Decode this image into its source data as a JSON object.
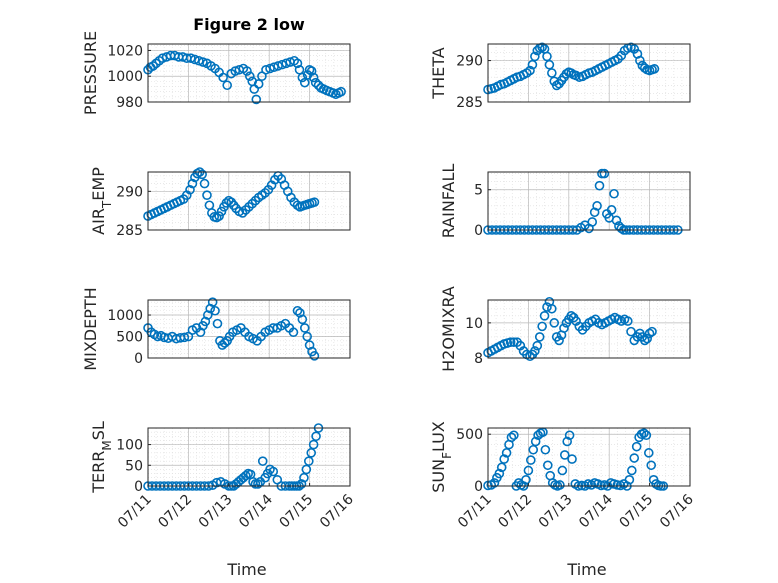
{
  "figure": {
    "title": "Figure 2 low"
  },
  "colors": {
    "marker": "#0072BD",
    "axis": "#262626",
    "grid": "#b9b9b9"
  },
  "chart_data": [
    {
      "id": "pressure",
      "type": "scatter",
      "ylabel": "PRESSURE",
      "xlabel": "",
      "yticks": [
        980,
        1000,
        1020
      ],
      "ylim": [
        980,
        1025
      ],
      "xlim": [
        0,
        5
      ],
      "show_xticks": false,
      "grid": true,
      "x": [
        0.0,
        0.06,
        0.13,
        0.2,
        0.28,
        0.36,
        0.46,
        0.56,
        0.66,
        0.76,
        0.86,
        0.96,
        1.06,
        1.16,
        1.26,
        1.36,
        1.46,
        1.56,
        1.66,
        1.76,
        1.86,
        1.96,
        2.06,
        2.16,
        2.26,
        2.36,
        2.45,
        2.52,
        2.58,
        2.63,
        2.68,
        2.74,
        2.82,
        2.92,
        3.02,
        3.12,
        3.22,
        3.32,
        3.42,
        3.52,
        3.62,
        3.7,
        3.75,
        3.82,
        3.88,
        3.95,
        4.0,
        4.05,
        4.1,
        4.15,
        4.22,
        4.28,
        4.35,
        4.42,
        4.5,
        4.58,
        4.65,
        4.72,
        4.78
      ],
      "y": [
        1005,
        1007,
        1008,
        1010,
        1012,
        1014,
        1015,
        1016,
        1016,
        1015,
        1015,
        1014,
        1014,
        1013,
        1012,
        1011,
        1010,
        1008,
        1006,
        1003,
        999,
        993,
        1002,
        1004,
        1005,
        1006,
        1004,
        1000,
        996,
        990,
        982,
        994,
        1000,
        1005,
        1006,
        1007,
        1008,
        1009,
        1010,
        1011,
        1012,
        1010,
        1005,
        999,
        995,
        1001,
        1005,
        1004,
        999,
        995,
        993,
        991,
        990,
        989,
        988,
        987,
        986,
        987,
        988
      ]
    },
    {
      "id": "theta",
      "type": "scatter",
      "ylabel": "THETA",
      "xlabel": "",
      "yticks": [
        285,
        290
      ],
      "ylim": [
        285,
        292
      ],
      "xlim": [
        0,
        5
      ],
      "show_xticks": false,
      "grid": true,
      "x": [
        0.0,
        0.08,
        0.16,
        0.24,
        0.32,
        0.4,
        0.48,
        0.56,
        0.64,
        0.72,
        0.8,
        0.88,
        0.96,
        1.04,
        1.1,
        1.16,
        1.22,
        1.28,
        1.34,
        1.4,
        1.46,
        1.52,
        1.58,
        1.64,
        1.7,
        1.76,
        1.82,
        1.88,
        1.94,
        2.0,
        2.06,
        2.12,
        2.18,
        2.26,
        2.34,
        2.42,
        2.5,
        2.58,
        2.66,
        2.74,
        2.82,
        2.9,
        2.98,
        3.06,
        3.14,
        3.22,
        3.3,
        3.38,
        3.46,
        3.54,
        3.62,
        3.7,
        3.76,
        3.82,
        3.88,
        3.94,
        4.0,
        4.06,
        4.12
      ],
      "y": [
        286.5,
        286.6,
        286.7,
        286.9,
        287.1,
        287.2,
        287.4,
        287.6,
        287.8,
        288.0,
        288.1,
        288.3,
        288.5,
        288.8,
        289.5,
        290.5,
        291.2,
        291.5,
        291.6,
        291.4,
        290.5,
        289.5,
        288.5,
        287.5,
        287.0,
        287.2,
        287.6,
        288.0,
        288.4,
        288.6,
        288.5,
        288.3,
        288.2,
        288.0,
        288.1,
        288.3,
        288.5,
        288.6,
        288.8,
        289.0,
        289.2,
        289.4,
        289.6,
        289.8,
        290.0,
        290.2,
        290.6,
        291.2,
        291.5,
        291.6,
        291.4,
        290.8,
        290.0,
        289.4,
        289.1,
        288.9,
        288.8,
        288.9,
        289.0
      ]
    },
    {
      "id": "air-temp",
      "type": "scatter",
      "ylabel": "AIR_TEMP",
      "xlabel": "",
      "yticks": [
        285,
        290
      ],
      "ylim": [
        285,
        292.5
      ],
      "xlim": [
        0,
        5
      ],
      "show_xticks": false,
      "grid": true,
      "x": [
        0.0,
        0.08,
        0.16,
        0.24,
        0.32,
        0.4,
        0.48,
        0.56,
        0.64,
        0.72,
        0.8,
        0.88,
        0.96,
        1.04,
        1.1,
        1.16,
        1.22,
        1.28,
        1.34,
        1.4,
        1.46,
        1.52,
        1.58,
        1.64,
        1.7,
        1.76,
        1.82,
        1.88,
        1.94,
        2.0,
        2.06,
        2.12,
        2.18,
        2.26,
        2.34,
        2.42,
        2.5,
        2.58,
        2.66,
        2.74,
        2.82,
        2.9,
        2.98,
        3.06,
        3.14,
        3.22,
        3.3,
        3.38,
        3.46,
        3.54,
        3.62,
        3.7,
        3.76,
        3.82,
        3.88,
        3.94,
        4.0,
        4.06,
        4.12
      ],
      "y": [
        286.8,
        287.0,
        287.2,
        287.4,
        287.6,
        287.8,
        288.0,
        288.2,
        288.4,
        288.6,
        288.8,
        289.0,
        289.5,
        290.2,
        291.0,
        291.8,
        292.3,
        292.5,
        292.2,
        291.0,
        289.5,
        288.2,
        287.2,
        286.7,
        286.6,
        286.8,
        287.4,
        288.0,
        288.5,
        288.8,
        288.6,
        288.2,
        287.8,
        287.4,
        287.2,
        287.6,
        288.0,
        288.4,
        288.8,
        289.2,
        289.5,
        289.8,
        290.2,
        290.8,
        291.5,
        292.0,
        291.6,
        290.8,
        290.0,
        289.2,
        288.6,
        288.2,
        288.0,
        288.1,
        288.2,
        288.3,
        288.4,
        288.5,
        288.6
      ]
    },
    {
      "id": "rainfall",
      "type": "scatter",
      "ylabel": "RAINFALL",
      "xlabel": "",
      "yticks": [
        0,
        5
      ],
      "ylim": [
        0,
        7.2
      ],
      "xlim": [
        0,
        5
      ],
      "show_xticks": false,
      "grid": true,
      "x": [
        0.0,
        0.1,
        0.2,
        0.3,
        0.4,
        0.5,
        0.6,
        0.7,
        0.8,
        0.9,
        1.0,
        1.1,
        1.2,
        1.3,
        1.4,
        1.5,
        1.6,
        1.7,
        1.8,
        1.9,
        2.0,
        2.1,
        2.2,
        2.3,
        2.4,
        2.5,
        2.58,
        2.64,
        2.7,
        2.76,
        2.82,
        2.88,
        2.94,
        3.0,
        3.06,
        3.12,
        3.18,
        3.24,
        3.3,
        3.36,
        3.42,
        3.5,
        3.6,
        3.7,
        3.8,
        3.9,
        4.0,
        4.1,
        4.2,
        4.3,
        4.4,
        4.5,
        4.6,
        4.7
      ],
      "y": [
        0,
        0,
        0,
        0,
        0,
        0,
        0,
        0,
        0,
        0,
        0,
        0,
        0,
        0,
        0,
        0,
        0,
        0,
        0,
        0,
        0,
        0,
        0,
        0.3,
        0.6,
        0.2,
        1.0,
        2.2,
        3.0,
        5.5,
        7.0,
        7.0,
        2.0,
        1.5,
        2.5,
        4.5,
        1.2,
        0.5,
        0.2,
        0,
        0,
        0,
        0,
        0,
        0,
        0,
        0,
        0,
        0,
        0,
        0,
        0,
        0,
        0
      ]
    },
    {
      "id": "mixdepth",
      "type": "scatter",
      "ylabel": "MIXDEPTH",
      "xlabel": "",
      "yticks": [
        0,
        500,
        1000
      ],
      "ylim": [
        0,
        1350
      ],
      "xlim": [
        0,
        5
      ],
      "show_xticks": false,
      "grid": true,
      "x": [
        0.0,
        0.08,
        0.16,
        0.24,
        0.32,
        0.4,
        0.5,
        0.6,
        0.7,
        0.8,
        0.9,
        1.0,
        1.1,
        1.2,
        1.3,
        1.36,
        1.42,
        1.48,
        1.54,
        1.6,
        1.66,
        1.72,
        1.78,
        1.84,
        1.9,
        1.96,
        2.02,
        2.1,
        2.2,
        2.3,
        2.4,
        2.5,
        2.6,
        2.7,
        2.8,
        2.9,
        3.0,
        3.1,
        3.2,
        3.3,
        3.4,
        3.5,
        3.6,
        3.7,
        3.76,
        3.82,
        3.88,
        3.94,
        4.0,
        4.06,
        4.12
      ],
      "y": [
        700,
        600,
        550,
        500,
        520,
        480,
        460,
        500,
        450,
        470,
        480,
        500,
        650,
        700,
        600,
        750,
        850,
        1000,
        1150,
        1300,
        1100,
        800,
        400,
        300,
        350,
        400,
        500,
        600,
        650,
        700,
        600,
        500,
        450,
        400,
        500,
        600,
        650,
        700,
        700,
        750,
        800,
        700,
        600,
        1100,
        1050,
        900,
        700,
        500,
        300,
        150,
        50
      ]
    },
    {
      "id": "h2omixra",
      "type": "scatter",
      "ylabel": "H2OMIXRA",
      "xlabel": "",
      "yticks": [
        8,
        10
      ],
      "ylim": [
        8,
        11.3
      ],
      "xlim": [
        0,
        5
      ],
      "show_xticks": false,
      "grid": true,
      "x": [
        0.0,
        0.08,
        0.16,
        0.24,
        0.32,
        0.4,
        0.48,
        0.56,
        0.64,
        0.72,
        0.8,
        0.88,
        0.96,
        1.04,
        1.1,
        1.16,
        1.22,
        1.28,
        1.34,
        1.4,
        1.46,
        1.52,
        1.58,
        1.64,
        1.7,
        1.76,
        1.82,
        1.88,
        1.94,
        2.0,
        2.06,
        2.12,
        2.18,
        2.26,
        2.34,
        2.42,
        2.5,
        2.58,
        2.66,
        2.74,
        2.82,
        2.9,
        2.98,
        3.06,
        3.14,
        3.22,
        3.3,
        3.38,
        3.46,
        3.54,
        3.62,
        3.7,
        3.76,
        3.82,
        3.88,
        3.94,
        4.0,
        4.06
      ],
      "y": [
        8.3,
        8.4,
        8.5,
        8.6,
        8.7,
        8.8,
        8.85,
        8.9,
        8.9,
        8.9,
        8.7,
        8.4,
        8.2,
        8.1,
        8.2,
        8.4,
        8.7,
        9.2,
        9.8,
        10.4,
        10.9,
        11.2,
        10.8,
        10.0,
        9.2,
        9.0,
        9.3,
        9.7,
        10.0,
        10.2,
        10.4,
        10.3,
        10.1,
        9.8,
        9.6,
        9.8,
        10.0,
        10.1,
        10.2,
        10.0,
        9.9,
        10.0,
        10.1,
        10.2,
        10.3,
        10.2,
        10.1,
        10.2,
        10.1,
        9.5,
        9.0,
        9.2,
        9.4,
        9.2,
        9.0,
        9.1,
        9.4,
        9.5
      ]
    },
    {
      "id": "terr-msl",
      "type": "scatter",
      "ylabel": "TERR_MSL",
      "xlabel": "Time",
      "yticks": [
        0,
        50,
        100
      ],
      "ylim": [
        0,
        140
      ],
      "xlim": [
        0,
        5
      ],
      "xticks": [
        0,
        1,
        2,
        3,
        4,
        5
      ],
      "xticklabels": [
        "07/11",
        "07/12",
        "07/13",
        "07/14",
        "07/15",
        "07/16"
      ],
      "show_xticks": true,
      "grid": true,
      "x": [
        0.0,
        0.1,
        0.2,
        0.3,
        0.4,
        0.5,
        0.6,
        0.7,
        0.8,
        0.9,
        1.0,
        1.1,
        1.2,
        1.3,
        1.4,
        1.5,
        1.6,
        1.7,
        1.8,
        1.9,
        2.0,
        2.06,
        2.12,
        2.18,
        2.24,
        2.3,
        2.36,
        2.42,
        2.48,
        2.54,
        2.6,
        2.66,
        2.72,
        2.78,
        2.84,
        2.9,
        2.96,
        3.02,
        3.1,
        3.2,
        3.3,
        3.4,
        3.5,
        3.56,
        3.62,
        3.68,
        3.74,
        3.8,
        3.86,
        3.92,
        3.98,
        4.04,
        4.1,
        4.16,
        4.22
      ],
      "y": [
        0,
        0,
        0,
        0,
        0,
        0,
        0,
        0,
        0,
        0,
        0,
        0,
        0,
        0,
        0,
        0,
        2,
        8,
        10,
        5,
        0,
        0,
        0,
        5,
        10,
        15,
        20,
        25,
        30,
        28,
        10,
        5,
        5,
        10,
        60,
        20,
        30,
        40,
        35,
        15,
        0,
        0,
        0,
        0,
        0,
        0,
        0,
        5,
        20,
        40,
        60,
        80,
        100,
        120,
        140
      ]
    },
    {
      "id": "sun-flux",
      "type": "scatter",
      "ylabel": "SUN_FLUX",
      "xlabel": "Time",
      "yticks": [
        0,
        500
      ],
      "ylim": [
        0,
        560
      ],
      "xlim": [
        0,
        5
      ],
      "xticks": [
        0,
        1,
        2,
        3,
        4,
        5
      ],
      "xticklabels": [
        "07/11",
        "07/12",
        "07/13",
        "07/14",
        "07/15",
        "07/16"
      ],
      "show_xticks": true,
      "grid": true,
      "x": [
        0.0,
        0.08,
        0.16,
        0.22,
        0.28,
        0.34,
        0.4,
        0.46,
        0.52,
        0.58,
        0.64,
        0.7,
        0.76,
        0.82,
        0.88,
        0.94,
        1.0,
        1.06,
        1.12,
        1.18,
        1.24,
        1.3,
        1.36,
        1.42,
        1.48,
        1.54,
        1.6,
        1.66,
        1.72,
        1.78,
        1.84,
        1.9,
        1.96,
        2.02,
        2.08,
        2.16,
        2.24,
        2.32,
        2.4,
        2.48,
        2.56,
        2.64,
        2.72,
        2.8,
        2.88,
        2.96,
        3.04,
        3.12,
        3.2,
        3.28,
        3.36,
        3.44,
        3.5,
        3.56,
        3.62,
        3.68,
        3.74,
        3.8,
        3.86,
        3.92,
        3.98,
        4.04,
        4.1,
        4.16,
        4.22,
        4.28,
        4.34
      ],
      "y": [
        5,
        10,
        30,
        80,
        120,
        180,
        260,
        320,
        400,
        470,
        490,
        0,
        30,
        10,
        0,
        60,
        150,
        250,
        350,
        430,
        490,
        510,
        520,
        350,
        200,
        100,
        30,
        10,
        0,
        10,
        150,
        300,
        430,
        490,
        260,
        20,
        0,
        5,
        0,
        20,
        10,
        30,
        20,
        5,
        10,
        0,
        30,
        20,
        10,
        5,
        20,
        0,
        60,
        150,
        270,
        380,
        470,
        500,
        510,
        490,
        320,
        200,
        60,
        20,
        5,
        0,
        0
      ]
    }
  ]
}
